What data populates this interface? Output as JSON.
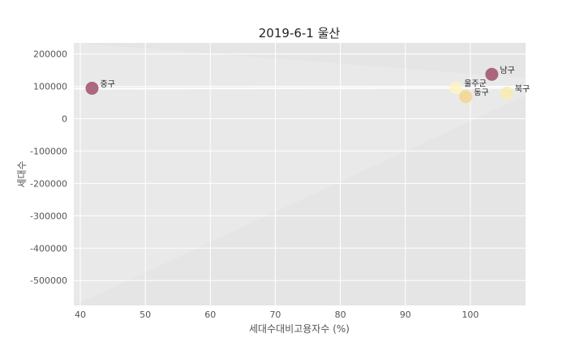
{
  "chart_data": {
    "type": "scatter",
    "title": "2019-6-1 울산",
    "xlabel": "세대수대비고용자수 (%)",
    "ylabel": "세대수",
    "xlim": [
      39,
      108.5
    ],
    "ylim": [
      -577000,
      234000
    ],
    "xticks": [
      40,
      50,
      60,
      70,
      80,
      90,
      100
    ],
    "yticks": [
      200000,
      100000,
      0,
      -100000,
      -200000,
      -300000,
      -400000,
      -500000
    ],
    "grid": true,
    "points": [
      {
        "label": "중구",
        "x": 41.8,
        "y": 94000,
        "color": "#a0506a"
      },
      {
        "label": "울주군",
        "x": 97.8,
        "y": 95000,
        "color": "#fdf5c4"
      },
      {
        "label": "동구",
        "x": 99.3,
        "y": 68000,
        "color": "#f3d58c"
      },
      {
        "label": "남구",
        "x": 103.3,
        "y": 137000,
        "color": "#a0506a"
      },
      {
        "label": "북구",
        "x": 105.6,
        "y": 79000,
        "color": "#f8ecb0"
      }
    ]
  }
}
